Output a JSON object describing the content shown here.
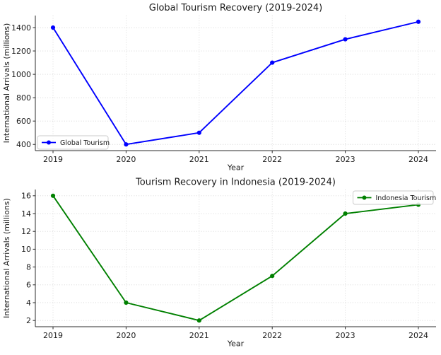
{
  "figure": {
    "background": "#ffffff",
    "text_color": "#1a1a1a",
    "grid_color": "#d2d2d2",
    "spine_color": "#2b2b2b"
  },
  "chart_data": [
    {
      "type": "line",
      "title": "Global Tourism Recovery (2019-2024)",
      "xlabel": "Year",
      "ylabel": "International Arrivals (millions)",
      "x": [
        2019,
        2020,
        2021,
        2022,
        2023,
        2024
      ],
      "series": [
        {
          "name": "Global Tourism",
          "values": [
            1400,
            400,
            500,
            1100,
            1300,
            1450
          ],
          "color": "#0000ff",
          "marker": "circle"
        }
      ],
      "xlim": [
        2018.758,
        2024.242
      ],
      "ylim": [
        347,
        1503
      ],
      "yticks": [
        400,
        600,
        800,
        1000,
        1200,
        1400
      ],
      "xticks": [
        2019,
        2020,
        2021,
        2022,
        2023,
        2024
      ],
      "grid": true,
      "legend_position": "lower-left"
    },
    {
      "type": "line",
      "title": "Tourism Recovery in Indonesia (2019-2024)",
      "xlabel": "Year",
      "ylabel": "International Arrivals (millions)",
      "x": [
        2019,
        2020,
        2021,
        2022,
        2023,
        2024
      ],
      "series": [
        {
          "name": "Indonesia Tourism",
          "values": [
            16,
            4,
            2,
            7,
            14,
            15
          ],
          "color": "#008000",
          "marker": "circle"
        }
      ],
      "xlim": [
        2018.758,
        2024.242
      ],
      "ylim": [
        1.3,
        16.7
      ],
      "yticks": [
        2,
        4,
        6,
        8,
        10,
        12,
        14,
        16
      ],
      "xticks": [
        2019,
        2020,
        2021,
        2022,
        2023,
        2024
      ],
      "grid": true,
      "legend_position": "upper-right"
    }
  ]
}
